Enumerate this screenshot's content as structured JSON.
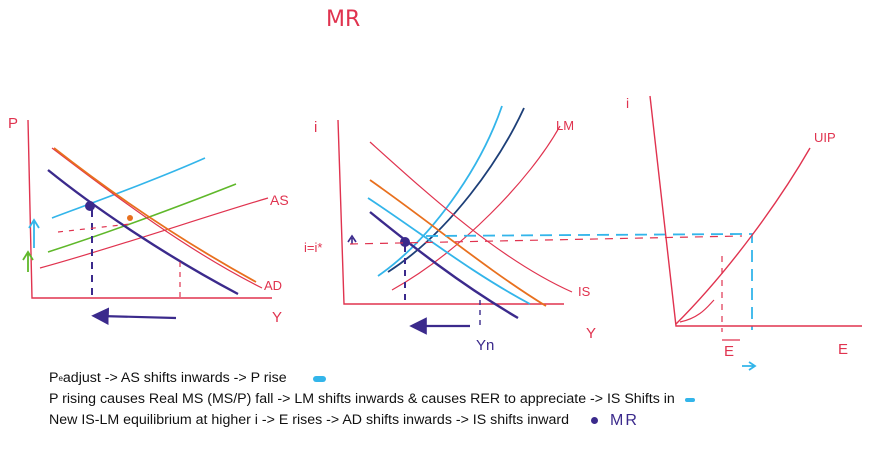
{
  "heading": "MR",
  "colors": {
    "axis": "#e0334f",
    "purple": "#3b2a8c",
    "orange": "#e8701e",
    "light_blue": "#33b5ea",
    "green": "#5fb82a",
    "dark_blue": "#1d3f78",
    "text": "#111111"
  },
  "diagram_labels": {
    "as_p_axis": "P",
    "as_as": "AS",
    "as_ad": "AD",
    "as_y": "Y",
    "islm_i_axis": "i",
    "islm_lm": "LM",
    "islm_i_level": "i=i*",
    "islm_is": "IS",
    "islm_y": "Y",
    "islm_yn": "Yn",
    "fx_i_axis": "i",
    "fx_uip": "UIP",
    "fx_e_bar": "E",
    "fx_e": "E"
  },
  "notes": {
    "line1_pre": "P",
    "line1_sup": "e",
    "line1_post": " adjust -> AS shifts inwards -> P rise",
    "line2": "P rising causes Real MS (MS/P) fall -> LM shifts inwards  &   causes RER to appreciate -> IS Shifts in",
    "line3": "New IS-LM equilibrium at higher i -> E rises -> AD shifts inwards -> IS shifts inward",
    "legend_mr": "MR"
  }
}
